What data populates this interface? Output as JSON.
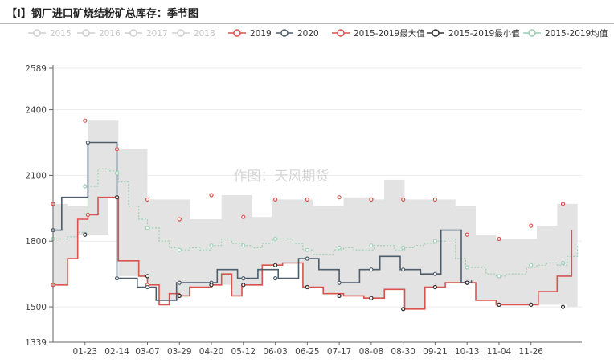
{
  "title": "【I】钢厂进口矿烧结粉矿总库存：季节图",
  "watermark": "作图：天风期货",
  "colors": {
    "band": "#e3e3e3",
    "red": "#d9534f",
    "dark": "#4e5d6c",
    "avg": "#9ccfb4",
    "faded": "#cfcfcf",
    "axis": "#666666",
    "grid": "#ebebeb"
  },
  "legend": [
    {
      "label": "2015",
      "color": "#cfcfcf",
      "active": false
    },
    {
      "label": "2016",
      "color": "#cfcfcf",
      "active": false
    },
    {
      "label": "2017",
      "color": "#cfcfcf",
      "active": false
    },
    {
      "label": "2018",
      "color": "#cfcfcf",
      "active": false
    },
    {
      "label": "2019",
      "color": "#d9534f",
      "active": true
    },
    {
      "label": "2020",
      "color": "#4e5d6c",
      "active": true
    },
    {
      "label": "2015-2019最大值",
      "color": "#d9534f",
      "active": true
    },
    {
      "label": "2015-2019最小值",
      "color": "#333333",
      "active": true
    },
    {
      "label": "2015-2019均值",
      "color": "#9ccfb4",
      "active": true
    }
  ],
  "chart_data": {
    "type": "line",
    "x_label_dates": [
      "01-23",
      "02-14",
      "03-07",
      "03-29",
      "04-20",
      "05-12",
      "06-03",
      "06-25",
      "07-17",
      "08-08",
      "08-30",
      "09-21",
      "10-13",
      "11-04",
      "11-26"
    ],
    "y_ticks": [
      1339,
      1500,
      1800,
      2100,
      2400,
      2589
    ],
    "ylim": [
      1339,
      2589
    ],
    "xlim": [
      "01-01",
      "12-31"
    ],
    "series": [
      {
        "name": "2019",
        "points": [
          [
            "01-01",
            1600
          ],
          [
            "01-11",
            1720
          ],
          [
            "01-18",
            1900
          ],
          [
            "01-25",
            1920
          ],
          [
            "02-01",
            2000
          ],
          [
            "02-15",
            1710
          ],
          [
            "03-01",
            1640
          ],
          [
            "03-07",
            1600
          ],
          [
            "03-15",
            1510
          ],
          [
            "03-22",
            1560
          ],
          [
            "03-29",
            1550
          ],
          [
            "04-05",
            1590
          ],
          [
            "04-20",
            1600
          ],
          [
            "04-27",
            1650
          ],
          [
            "05-04",
            1550
          ],
          [
            "05-11",
            1600
          ],
          [
            "05-25",
            1690
          ],
          [
            "06-01",
            1690
          ],
          [
            "06-08",
            1700
          ],
          [
            "06-22",
            1590
          ],
          [
            "07-06",
            1560
          ],
          [
            "07-20",
            1550
          ],
          [
            "08-03",
            1540
          ],
          [
            "08-17",
            1580
          ],
          [
            "08-31",
            1490
          ],
          [
            "09-07",
            1490
          ],
          [
            "09-14",
            1590
          ],
          [
            "09-28",
            1610
          ],
          [
            "10-19",
            1530
          ],
          [
            "11-02",
            1510
          ],
          [
            "11-16",
            1510
          ],
          [
            "12-01",
            1570
          ],
          [
            "12-14",
            1640
          ],
          [
            "12-24",
            1850
          ]
        ]
      },
      {
        "name": "2020",
        "points": [
          [
            "01-01",
            1850
          ],
          [
            "01-07",
            2000
          ],
          [
            "01-25",
            2250
          ],
          [
            "02-14",
            1630
          ],
          [
            "02-28",
            1590
          ],
          [
            "03-13",
            1530
          ],
          [
            "03-27",
            1610
          ],
          [
            "04-10",
            1610
          ],
          [
            "04-24",
            1670
          ],
          [
            "05-08",
            1630
          ],
          [
            "05-22",
            1670
          ],
          [
            "06-05",
            1630
          ],
          [
            "06-19",
            1720
          ],
          [
            "07-03",
            1670
          ],
          [
            "07-17",
            1610
          ],
          [
            "07-31",
            1670
          ],
          [
            "08-14",
            1730
          ],
          [
            "08-28",
            1670
          ],
          [
            "09-11",
            1650
          ],
          [
            "09-25",
            1850
          ],
          [
            "10-09",
            1610
          ],
          [
            "10-16",
            1620
          ]
        ]
      },
      {
        "name": "2015-2019最大值",
        "points": [
          [
            "01-01",
            1970
          ],
          [
            "01-11",
            1960
          ],
          [
            "01-25",
            2350
          ],
          [
            "02-08",
            2350
          ],
          [
            "02-15",
            2220
          ],
          [
            "03-01",
            2220
          ],
          [
            "03-07",
            1990
          ],
          [
            "03-29",
            1990
          ],
          [
            "04-05",
            1900
          ],
          [
            "04-20",
            1900
          ],
          [
            "04-27",
            2010
          ],
          [
            "05-11",
            2010
          ],
          [
            "05-18",
            1910
          ],
          [
            "05-25",
            1910
          ],
          [
            "06-01",
            1990
          ],
          [
            "06-22",
            1990
          ],
          [
            "06-29",
            1960
          ],
          [
            "07-13",
            1960
          ],
          [
            "07-20",
            2000
          ],
          [
            "08-03",
            2000
          ],
          [
            "08-10",
            1990
          ],
          [
            "08-17",
            2080
          ],
          [
            "08-24",
            2080
          ],
          [
            "08-31",
            1990
          ],
          [
            "09-21",
            1990
          ],
          [
            "10-05",
            1960
          ],
          [
            "10-12",
            1960
          ],
          [
            "10-19",
            1830
          ],
          [
            "10-26",
            1830
          ],
          [
            "11-02",
            1810
          ],
          [
            "11-23",
            1810
          ],
          [
            "11-30",
            1870
          ],
          [
            "12-07",
            1870
          ],
          [
            "12-14",
            1970
          ],
          [
            "12-28",
            1960
          ]
        ]
      },
      {
        "name": "2015-2019最小值",
        "points": [
          [
            "01-01",
            1600
          ],
          [
            "01-11",
            1720
          ],
          [
            "01-18",
            1830
          ],
          [
            "01-25",
            1830
          ],
          [
            "02-08",
            2000
          ],
          [
            "02-15",
            1640
          ],
          [
            "03-01",
            1640
          ],
          [
            "03-07",
            1600
          ],
          [
            "03-15",
            1530
          ],
          [
            "03-29",
            1550
          ],
          [
            "04-05",
            1590
          ],
          [
            "04-20",
            1600
          ],
          [
            "04-27",
            1600
          ],
          [
            "05-04",
            1550
          ],
          [
            "05-11",
            1600
          ],
          [
            "05-25",
            1690
          ],
          [
            "06-08",
            1700
          ],
          [
            "06-22",
            1590
          ],
          [
            "07-06",
            1560
          ],
          [
            "07-20",
            1550
          ],
          [
            "08-03",
            1540
          ],
          [
            "08-17",
            1580
          ],
          [
            "08-31",
            1490
          ],
          [
            "09-07",
            1490
          ],
          [
            "09-14",
            1590
          ],
          [
            "09-28",
            1610
          ],
          [
            "10-19",
            1530
          ],
          [
            "11-02",
            1510
          ],
          [
            "11-16",
            1510
          ],
          [
            "11-30",
            1510
          ],
          [
            "12-21",
            1500
          ],
          [
            "12-28",
            1600
          ]
        ]
      },
      {
        "name": "2015-2019均值",
        "points": [
          [
            "01-01",
            1810
          ],
          [
            "01-11",
            1820
          ],
          [
            "01-18",
            1840
          ],
          [
            "01-25",
            2050
          ],
          [
            "02-01",
            2130
          ],
          [
            "02-08",
            2120
          ],
          [
            "02-15",
            2070
          ],
          [
            "02-22",
            1960
          ],
          [
            "03-01",
            1900
          ],
          [
            "03-07",
            1860
          ],
          [
            "03-15",
            1800
          ],
          [
            "03-22",
            1770
          ],
          [
            "03-29",
            1760
          ],
          [
            "04-05",
            1770
          ],
          [
            "04-12",
            1760
          ],
          [
            "04-20",
            1780
          ],
          [
            "04-27",
            1810
          ],
          [
            "05-04",
            1790
          ],
          [
            "05-11",
            1780
          ],
          [
            "05-18",
            1770
          ],
          [
            "05-25",
            1790
          ],
          [
            "06-01",
            1810
          ],
          [
            "06-08",
            1810
          ],
          [
            "06-15",
            1790
          ],
          [
            "06-22",
            1760
          ],
          [
            "06-29",
            1740
          ],
          [
            "07-06",
            1740
          ],
          [
            "07-13",
            1760
          ],
          [
            "07-20",
            1770
          ],
          [
            "07-27",
            1760
          ],
          [
            "08-03",
            1760
          ],
          [
            "08-10",
            1780
          ],
          [
            "08-17",
            1780
          ],
          [
            "08-24",
            1760
          ],
          [
            "08-31",
            1770
          ],
          [
            "09-07",
            1780
          ],
          [
            "09-14",
            1790
          ],
          [
            "09-21",
            1800
          ],
          [
            "09-28",
            1810
          ],
          [
            "10-05",
            1720
          ],
          [
            "10-12",
            1680
          ],
          [
            "10-19",
            1680
          ],
          [
            "10-26",
            1650
          ],
          [
            "11-02",
            1640
          ],
          [
            "11-09",
            1650
          ],
          [
            "11-16",
            1650
          ],
          [
            "11-23",
            1680
          ],
          [
            "11-30",
            1690
          ],
          [
            "12-07",
            1700
          ],
          [
            "12-14",
            1690
          ],
          [
            "12-21",
            1730
          ],
          [
            "12-28",
            1780
          ]
        ]
      }
    ],
    "markers": {
      "2019": [
        [
          "01-01",
          1600
        ],
        [
          "01-25",
          1920
        ],
        [
          "02-14",
          2000
        ],
        [
          "03-07",
          1600
        ],
        [
          "03-29",
          1550
        ],
        [
          "04-20",
          1600
        ],
        [
          "05-12",
          1600
        ],
        [
          "06-03",
          1690
        ],
        [
          "06-25",
          1590
        ],
        [
          "07-17",
          1550
        ],
        [
          "08-08",
          1540
        ],
        [
          "08-30",
          1490
        ],
        [
          "09-21",
          1590
        ],
        [
          "10-13",
          1610
        ],
        [
          "11-04",
          1510
        ],
        [
          "11-26",
          1510
        ]
      ],
      "2020": [
        [
          "01-01",
          1850
        ],
        [
          "01-25",
          2250
        ],
        [
          "02-14",
          1630
        ],
        [
          "03-07",
          1590
        ],
        [
          "03-29",
          1610
        ],
        [
          "04-20",
          1610
        ],
        [
          "05-12",
          1630
        ],
        [
          "06-03",
          1630
        ],
        [
          "06-25",
          1720
        ],
        [
          "07-17",
          1610
        ],
        [
          "08-08",
          1670
        ],
        [
          "08-30",
          1670
        ],
        [
          "09-21",
          1650
        ],
        [
          "10-13",
          1610
        ]
      ],
      "2015-2019最大值": [
        [
          "01-01",
          1970
        ],
        [
          "01-23",
          2350
        ],
        [
          "02-14",
          2220
        ],
        [
          "03-07",
          1990
        ],
        [
          "03-29",
          1900
        ],
        [
          "04-20",
          2010
        ],
        [
          "05-12",
          1910
        ],
        [
          "06-03",
          1990
        ],
        [
          "06-25",
          1990
        ],
        [
          "07-17",
          2000
        ],
        [
          "08-08",
          1990
        ],
        [
          "08-30",
          1990
        ],
        [
          "09-21",
          1990
        ],
        [
          "10-13",
          1830
        ],
        [
          "11-04",
          1810
        ],
        [
          "11-26",
          1870
        ],
        [
          "12-18",
          1970
        ]
      ],
      "2015-2019最小值": [
        [
          "01-23",
          1830
        ],
        [
          "02-14",
          2000
        ],
        [
          "03-07",
          1640
        ],
        [
          "03-29",
          1550
        ],
        [
          "04-20",
          1600
        ],
        [
          "05-12",
          1600
        ],
        [
          "06-03",
          1690
        ],
        [
          "06-25",
          1590
        ],
        [
          "07-17",
          1550
        ],
        [
          "08-08",
          1540
        ],
        [
          "08-30",
          1490
        ],
        [
          "09-21",
          1590
        ],
        [
          "10-13",
          1610
        ],
        [
          "11-04",
          1510
        ],
        [
          "11-26",
          1510
        ],
        [
          "12-18",
          1500
        ]
      ],
      "2015-2019均值": [
        [
          "01-01",
          1810
        ],
        [
          "01-23",
          2050
        ],
        [
          "02-14",
          2110
        ],
        [
          "03-07",
          1860
        ],
        [
          "03-29",
          1760
        ],
        [
          "04-20",
          1780
        ],
        [
          "05-12",
          1780
        ],
        [
          "06-03",
          1810
        ],
        [
          "06-25",
          1760
        ],
        [
          "07-17",
          1770
        ],
        [
          "08-08",
          1780
        ],
        [
          "08-30",
          1770
        ],
        [
          "09-21",
          1800
        ],
        [
          "10-13",
          1680
        ],
        [
          "11-04",
          1640
        ],
        [
          "11-26",
          1690
        ],
        [
          "12-18",
          1700
        ]
      ]
    },
    "band": {
      "name": "2015-2019区间",
      "upper_series": "2015-2019最大值",
      "lower_series": "2015-2019最小值"
    }
  }
}
